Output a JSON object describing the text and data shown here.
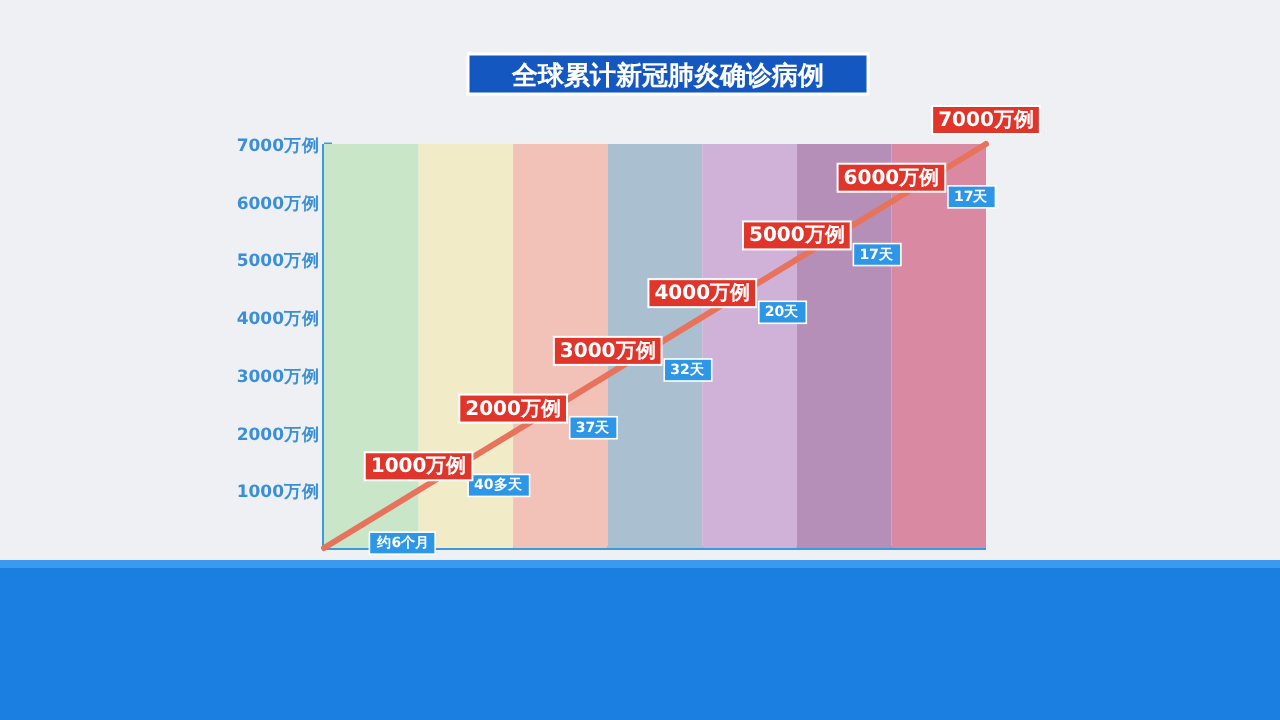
{
  "chart_data": {
    "type": "line",
    "title": "全球累计新冠肺炎确诊病例",
    "categories": [
      null,
      null,
      null,
      null,
      null,
      null,
      null,
      null
    ],
    "series": [
      {
        "type": "bar",
        "colors": [
          "#c9e6c8",
          "#f2ebc8",
          "#f2c1b8",
          "#aabfd0",
          "#d0b2d8",
          "#b68fb8",
          "#d98aa2",
          null
        ],
        "values": [
          7000,
          7000,
          7000,
          7000,
          7000,
          7000,
          7000,
          null
        ]
      },
      {
        "color": "#e8735c",
        "values": [
          0,
          1000,
          2000,
          3000,
          4000,
          5000,
          6000,
          7000
        ],
        "value_labels": [
          null,
          "1000万例",
          "2000万例",
          "3000万例",
          "4000万例",
          "5000万例",
          "6000万例",
          "7000万例"
        ]
      }
    ],
    "ylim": [
      0,
      7000
    ],
    "yticks": [
      {
        "value": 1000,
        "label": "1000万例"
      },
      {
        "value": 2000,
        "label": "2000万例"
      },
      {
        "value": 3000,
        "label": "3000万例"
      },
      {
        "value": 4000,
        "label": "4000万例"
      },
      {
        "value": 5000,
        "label": "5000万例"
      },
      {
        "value": 6000,
        "label": "6000万例"
      },
      {
        "value": 7000,
        "label": "7000万例"
      }
    ],
    "tick_labels": "y",
    "annotations": [
      "约6个月",
      "40多天",
      "37天",
      "32天",
      "20天",
      "17天",
      "17天"
    ]
  }
}
